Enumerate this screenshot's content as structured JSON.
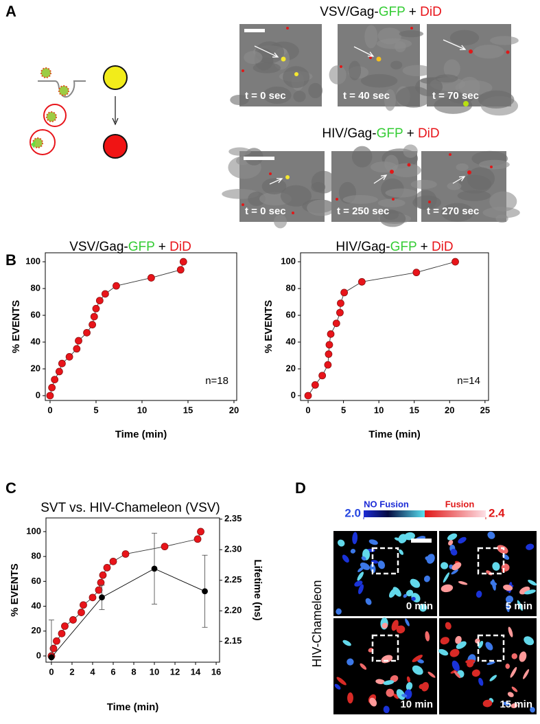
{
  "panel_labels": [
    "A",
    "B",
    "C",
    "D"
  ],
  "panel_a": {
    "groups": [
      {
        "title": [
          {
            "text": "VSV/Gag-",
            "color": "#000000"
          },
          {
            "text": "GFP",
            "color": "#33cc33"
          },
          {
            "text": " + ",
            "color": "#000000"
          },
          {
            "text": "DiD",
            "color": "#e8141a"
          }
        ],
        "frames": [
          "t = 0 sec",
          "t = 40 sec",
          "t = 70 sec"
        ]
      },
      {
        "title": [
          {
            "text": "HIV/Gag-",
            "color": "#000000"
          },
          {
            "text": "GFP",
            "color": "#33cc33"
          },
          {
            "text": " + ",
            "color": "#000000"
          },
          {
            "text": "DiD",
            "color": "#e8141a"
          }
        ],
        "frames": [
          "t = 0 sec",
          "t = 250 sec",
          "t = 270 sec"
        ]
      }
    ]
  },
  "panel_d": {
    "colorbar": {
      "left_label": "NO Fusion",
      "right_label": "Fusion",
      "ticks": [
        {
          "value": 2.0,
          "label": "2.0"
        },
        {
          "value": 2.4,
          "label": "2.4"
        }
      ]
    },
    "ylabel": "HIV-Chameleon",
    "frames": [
      "0 min",
      "5 min",
      "10 min",
      "15 min"
    ]
  },
  "chart_data": [
    {
      "type": "line",
      "markers": true,
      "title": [
        {
          "text": "VSV/Gag-",
          "color": "#000000"
        },
        {
          "text": "GFP",
          "color": "#33cc33"
        },
        {
          "text": " + ",
          "color": "#000000"
        },
        {
          "text": "DiD",
          "color": "#e8141a"
        }
      ],
      "xlabel": "Time (min)",
      "ylabel": "% EVENTS",
      "annotation": "n=18",
      "series": [
        {
          "color": "#e8141a",
          "x": [
            0,
            0.2,
            0.5,
            1.0,
            1.3,
            2.1,
            2.9,
            3.1,
            4.0,
            4.6,
            4.8,
            5.0,
            5.4,
            6.0,
            7.2,
            11.0,
            14.2,
            14.5
          ],
          "values": [
            0,
            6,
            12,
            18,
            24,
            29,
            35,
            41,
            47,
            53,
            59,
            65,
            71,
            76,
            82,
            88,
            94,
            100
          ]
        }
      ],
      "xlim": [
        -0.52,
        20.3
      ],
      "ylim": [
        -3.6,
        106.7
      ],
      "xticks": [
        0,
        5,
        10,
        15,
        20
      ],
      "yticks": [
        0,
        20,
        40,
        60,
        80,
        100
      ]
    },
    {
      "type": "line",
      "markers": true,
      "title": [
        {
          "text": "HIV/Gag-",
          "color": "#000000"
        },
        {
          "text": "GFP",
          "color": "#33cc33"
        },
        {
          "text": " + ",
          "color": "#000000"
        },
        {
          "text": "DiD",
          "color": "#e8141a"
        }
      ],
      "xlabel": "Time (min)",
      "ylabel": "% EVENTS",
      "annotation": "n=14",
      "series": [
        {
          "color": "#e8141a",
          "x": [
            0,
            1.0,
            2.0,
            2.8,
            2.9,
            3.0,
            3.2,
            4.0,
            4.5,
            4.6,
            5.1,
            7.6,
            15.3,
            20.8
          ],
          "values": [
            0,
            8,
            15,
            23,
            31,
            38,
            46,
            54,
            62,
            69,
            77,
            85,
            92,
            100
          ]
        }
      ],
      "xlim": [
        -1.07,
        25.5
      ],
      "ylim": [
        -3.6,
        106.7
      ],
      "xticks": [
        0,
        5,
        10,
        15,
        20,
        25
      ],
      "yticks": [
        0,
        20,
        40,
        60,
        80,
        100
      ]
    },
    {
      "type": "line",
      "markers": true,
      "title": [
        {
          "text": "SVT vs. HIV-Chameleon (VSV)",
          "color": "#000000"
        }
      ],
      "xlabel": "Time (min)",
      "ylabel": "% EVENTS",
      "y2label": "Lifetime (ns)",
      "series": [
        {
          "color": "#e8141a",
          "x": [
            0,
            0.2,
            0.5,
            1.0,
            1.3,
            2.1,
            2.9,
            3.1,
            4.0,
            4.6,
            4.8,
            5.0,
            5.4,
            6.0,
            7.2,
            11.0,
            14.2,
            14.5
          ],
          "values": [
            0,
            6,
            12,
            18,
            24,
            29,
            35,
            41,
            47,
            53,
            59,
            65,
            71,
            76,
            82,
            88,
            94,
            100
          ]
        },
        {
          "color": "#000000",
          "axis": "y2",
          "x": [
            0,
            4.9,
            10,
            14.9
          ],
          "values": [
            2.124,
            2.222,
            2.269,
            2.232
          ],
          "errors": [
            0.061,
            0.02,
            0.058,
            0.059
          ]
        }
      ],
      "xlim": [
        -0.53,
        16.33
      ],
      "ylim": [
        -5,
        111
      ],
      "y2lim": [
        2.116,
        2.352
      ],
      "xticks": [
        0,
        2,
        4,
        6,
        8,
        10,
        12,
        14,
        16
      ],
      "yticks": [
        0,
        20,
        40,
        60,
        80,
        100
      ],
      "y2ticks": [
        2.15,
        {
          "value": 2.2,
          "label": "2.20"
        },
        2.25,
        {
          "value": 2.3,
          "label": "2.30"
        },
        2.35
      ]
    }
  ]
}
